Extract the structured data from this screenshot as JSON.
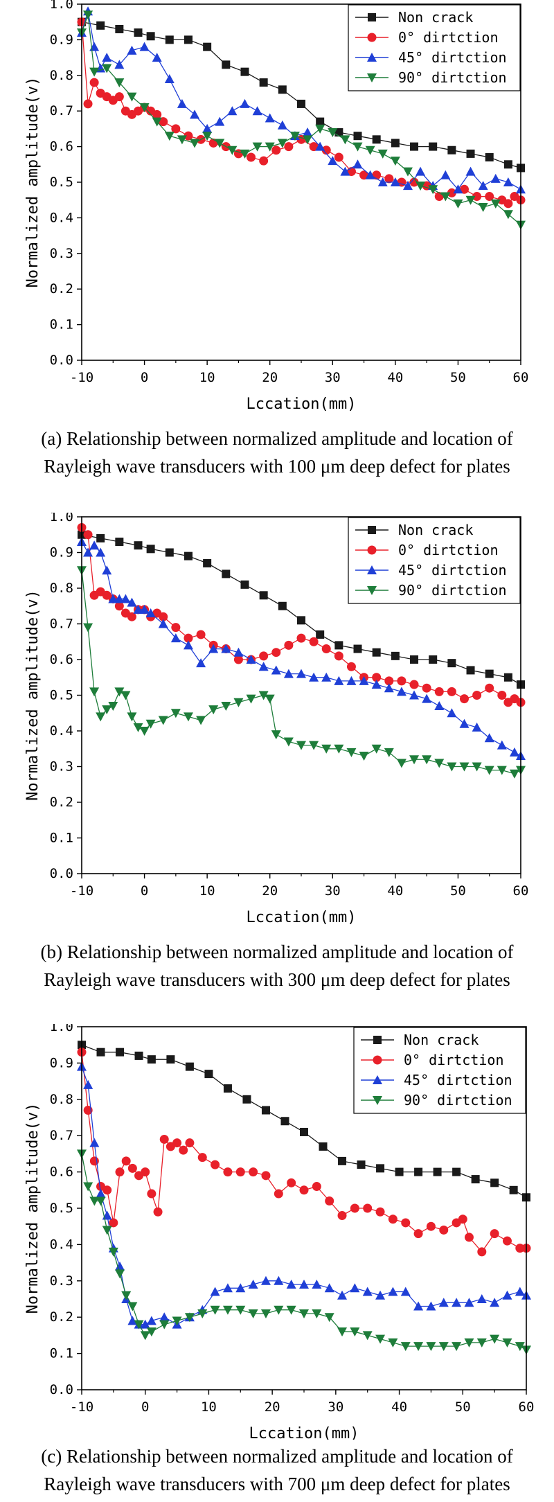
{
  "legend_labels": [
    "Non crack",
    "0° dirtction",
    "45° dirtction",
    "90° dirtction"
  ],
  "series_colors": [
    "#1a1a1a",
    "#e8202a",
    "#1f3fd6",
    "#1e7d3a"
  ],
  "series_markers": [
    "square",
    "circle",
    "triangle-up",
    "triangle-down"
  ],
  "chart_data": [
    {
      "type": "line",
      "xlabel": "Lccation(mm)",
      "ylabel": "Normalized amplitude(v)",
      "xlim": [
        -10,
        60
      ],
      "ylim": [
        0,
        1.0
      ],
      "xticks": [
        -10,
        0,
        10,
        20,
        30,
        40,
        50,
        60
      ],
      "yticks": [
        0.0,
        0.1,
        0.2,
        0.3,
        0.4,
        0.5,
        0.6,
        0.7,
        0.8,
        0.9,
        1.0
      ],
      "legend_position": "top-right",
      "grid": false,
      "caption_line1": "(a) Relationship between normalized amplitude and location of",
      "caption_line2": "Rayleigh wave transducers with 100 μm deep defect for plates",
      "series": [
        {
          "name": "Non crack",
          "x": [
            -10,
            -7,
            -4,
            -1,
            1,
            4,
            7,
            10,
            13,
            16,
            19,
            22,
            25,
            28,
            31,
            34,
            37,
            40,
            43,
            46,
            49,
            52,
            55,
            58,
            60
          ],
          "values": [
            0.95,
            0.94,
            0.93,
            0.92,
            0.91,
            0.9,
            0.9,
            0.88,
            0.83,
            0.81,
            0.78,
            0.76,
            0.72,
            0.67,
            0.64,
            0.63,
            0.62,
            0.61,
            0.6,
            0.6,
            0.59,
            0.58,
            0.57,
            0.55,
            0.54
          ]
        },
        {
          "name": "0° dirtction",
          "x": [
            -10,
            -9,
            -8,
            -7,
            -6,
            -5,
            -4,
            -3,
            -2,
            -1,
            0,
            1,
            2,
            3,
            5,
            7,
            9,
            11,
            13,
            15,
            17,
            19,
            21,
            23,
            25,
            27,
            29,
            31,
            33,
            35,
            37,
            39,
            41,
            43,
            45,
            47,
            49,
            51,
            53,
            55,
            57,
            58,
            59,
            60
          ],
          "values": [
            0.95,
            0.72,
            0.78,
            0.75,
            0.74,
            0.73,
            0.74,
            0.7,
            0.69,
            0.7,
            0.71,
            0.7,
            0.69,
            0.67,
            0.65,
            0.63,
            0.62,
            0.61,
            0.6,
            0.58,
            0.57,
            0.56,
            0.59,
            0.6,
            0.62,
            0.6,
            0.59,
            0.57,
            0.53,
            0.52,
            0.52,
            0.51,
            0.5,
            0.5,
            0.49,
            0.46,
            0.47,
            0.48,
            0.46,
            0.46,
            0.45,
            0.44,
            0.46,
            0.45
          ]
        },
        {
          "name": "45° dirtction",
          "x": [
            -10,
            -9,
            -8,
            -7,
            -6,
            -4,
            -2,
            0,
            2,
            4,
            6,
            8,
            10,
            12,
            14,
            16,
            18,
            20,
            22,
            24,
            26,
            28,
            30,
            32,
            34,
            36,
            38,
            40,
            42,
            44,
            46,
            48,
            50,
            52,
            54,
            56,
            58,
            60
          ],
          "values": [
            0.92,
            0.98,
            0.88,
            0.82,
            0.85,
            0.83,
            0.87,
            0.88,
            0.85,
            0.79,
            0.72,
            0.69,
            0.65,
            0.67,
            0.7,
            0.72,
            0.7,
            0.68,
            0.66,
            0.63,
            0.64,
            0.6,
            0.56,
            0.53,
            0.55,
            0.52,
            0.5,
            0.5,
            0.49,
            0.53,
            0.49,
            0.52,
            0.48,
            0.53,
            0.49,
            0.51,
            0.5,
            0.48
          ]
        },
        {
          "name": "90° dirtction",
          "x": [
            -10,
            -9,
            -8,
            -6,
            -4,
            -2,
            0,
            2,
            4,
            6,
            8,
            10,
            12,
            14,
            16,
            18,
            20,
            22,
            24,
            26,
            28,
            30,
            32,
            34,
            36,
            38,
            40,
            42,
            44,
            46,
            48,
            50,
            52,
            54,
            56,
            58,
            60
          ],
          "values": [
            0.92,
            0.97,
            0.81,
            0.82,
            0.78,
            0.74,
            0.71,
            0.67,
            0.63,
            0.62,
            0.61,
            0.63,
            0.61,
            0.59,
            0.58,
            0.6,
            0.6,
            0.61,
            0.63,
            0.62,
            0.65,
            0.64,
            0.62,
            0.6,
            0.59,
            0.58,
            0.56,
            0.53,
            0.49,
            0.48,
            0.46,
            0.44,
            0.45,
            0.43,
            0.44,
            0.41,
            0.38
          ]
        }
      ]
    },
    {
      "type": "line",
      "xlabel": "Lccation(mm)",
      "ylabel": "Normalized amplitude(v)",
      "xlim": [
        -10,
        60
      ],
      "ylim": [
        0,
        1.0
      ],
      "xticks": [
        -10,
        0,
        10,
        20,
        30,
        40,
        50,
        60
      ],
      "yticks": [
        0.0,
        0.1,
        0.2,
        0.3,
        0.4,
        0.5,
        0.6,
        0.7,
        0.8,
        0.9,
        1.0
      ],
      "legend_position": "top-right",
      "grid": false,
      "caption_line1": "(b) Relationship between normalized amplitude and location of",
      "caption_line2": "Rayleigh wave transducers with 300 μm deep defect for plates",
      "series": [
        {
          "name": "Non crack",
          "x": [
            -10,
            -7,
            -4,
            -1,
            1,
            4,
            7,
            10,
            13,
            16,
            19,
            22,
            25,
            28,
            31,
            34,
            37,
            40,
            43,
            46,
            49,
            52,
            55,
            58,
            60
          ],
          "values": [
            0.95,
            0.94,
            0.93,
            0.92,
            0.91,
            0.9,
            0.89,
            0.87,
            0.84,
            0.81,
            0.78,
            0.75,
            0.71,
            0.67,
            0.64,
            0.63,
            0.62,
            0.61,
            0.6,
            0.6,
            0.59,
            0.57,
            0.56,
            0.55,
            0.53
          ]
        },
        {
          "name": "0° dirtction",
          "x": [
            -10,
            -9,
            -8,
            -7,
            -6,
            -5,
            -4,
            -3,
            -2,
            -1,
            0,
            1,
            2,
            3,
            5,
            7,
            9,
            11,
            13,
            15,
            17,
            19,
            21,
            23,
            25,
            27,
            29,
            31,
            33,
            35,
            37,
            39,
            41,
            43,
            45,
            47,
            49,
            51,
            53,
            55,
            57,
            58,
            59,
            60
          ],
          "values": [
            0.97,
            0.95,
            0.78,
            0.79,
            0.78,
            0.77,
            0.75,
            0.73,
            0.72,
            0.74,
            0.74,
            0.72,
            0.73,
            0.72,
            0.69,
            0.66,
            0.67,
            0.64,
            0.63,
            0.6,
            0.6,
            0.61,
            0.62,
            0.64,
            0.66,
            0.65,
            0.63,
            0.61,
            0.58,
            0.55,
            0.55,
            0.54,
            0.54,
            0.53,
            0.52,
            0.51,
            0.51,
            0.49,
            0.5,
            0.52,
            0.5,
            0.48,
            0.49,
            0.48
          ]
        },
        {
          "name": "45° dirtction",
          "x": [
            -10,
            -9,
            -8,
            -7,
            -6,
            -5,
            -4,
            -3,
            -2,
            -1,
            0,
            1,
            3,
            5,
            7,
            9,
            11,
            13,
            15,
            17,
            19,
            21,
            23,
            25,
            27,
            29,
            31,
            33,
            35,
            37,
            39,
            41,
            43,
            45,
            47,
            49,
            51,
            53,
            55,
            57,
            59,
            60
          ],
          "values": [
            0.93,
            0.9,
            0.92,
            0.9,
            0.85,
            0.77,
            0.77,
            0.77,
            0.76,
            0.74,
            0.74,
            0.73,
            0.7,
            0.66,
            0.64,
            0.59,
            0.63,
            0.63,
            0.62,
            0.6,
            0.58,
            0.57,
            0.56,
            0.56,
            0.55,
            0.55,
            0.54,
            0.54,
            0.54,
            0.53,
            0.52,
            0.51,
            0.5,
            0.49,
            0.47,
            0.45,
            0.42,
            0.41,
            0.38,
            0.36,
            0.34,
            0.33
          ]
        },
        {
          "name": "90° dirtction",
          "x": [
            -10,
            -9,
            -8,
            -7,
            -6,
            -5,
            -4,
            -3,
            -2,
            -1,
            0,
            1,
            3,
            5,
            7,
            9,
            11,
            13,
            15,
            17,
            19,
            20,
            21,
            23,
            25,
            27,
            29,
            31,
            33,
            35,
            37,
            39,
            41,
            43,
            45,
            47,
            49,
            51,
            53,
            55,
            57,
            59,
            60
          ],
          "values": [
            0.85,
            0.69,
            0.51,
            0.44,
            0.46,
            0.47,
            0.51,
            0.5,
            0.44,
            0.41,
            0.4,
            0.42,
            0.43,
            0.45,
            0.44,
            0.43,
            0.46,
            0.47,
            0.48,
            0.49,
            0.5,
            0.49,
            0.39,
            0.37,
            0.36,
            0.36,
            0.35,
            0.35,
            0.34,
            0.33,
            0.35,
            0.34,
            0.31,
            0.32,
            0.32,
            0.31,
            0.3,
            0.3,
            0.3,
            0.29,
            0.29,
            0.28,
            0.29
          ]
        }
      ]
    },
    {
      "type": "line",
      "xlabel": "Lccation(mm)",
      "ylabel": "Normalized amplitude(v)",
      "xlim": [
        -10,
        60
      ],
      "ylim": [
        0,
        1.0
      ],
      "xticks": [
        -10,
        0,
        10,
        20,
        30,
        40,
        50,
        60
      ],
      "yticks": [
        0.0,
        0.1,
        0.2,
        0.3,
        0.4,
        0.5,
        0.6,
        0.7,
        0.8,
        0.9,
        1.0
      ],
      "legend_position": "top-right",
      "grid": false,
      "caption_line1": "(c) Relationship between normalized amplitude and location of",
      "caption_line2": "Rayleigh wave transducers with 700 μm deep defect for plates",
      "series": [
        {
          "name": "Non crack",
          "x": [
            -10,
            -7,
            -4,
            -1,
            1,
            4,
            7,
            10,
            13,
            16,
            19,
            22,
            25,
            28,
            31,
            34,
            37,
            40,
            43,
            46,
            49,
            52,
            55,
            58,
            60
          ],
          "values": [
            0.95,
            0.93,
            0.93,
            0.92,
            0.91,
            0.91,
            0.89,
            0.87,
            0.83,
            0.8,
            0.77,
            0.74,
            0.71,
            0.67,
            0.63,
            0.62,
            0.61,
            0.6,
            0.6,
            0.6,
            0.6,
            0.58,
            0.57,
            0.55,
            0.53
          ]
        },
        {
          "name": "0° dirtction",
          "x": [
            -10,
            -9,
            -8,
            -7,
            -6,
            -5,
            -4,
            -3,
            -2,
            -1,
            0,
            1,
            2,
            3,
            4,
            5,
            6,
            7,
            9,
            11,
            13,
            15,
            17,
            19,
            21,
            23,
            25,
            27,
            29,
            31,
            33,
            35,
            37,
            39,
            41,
            43,
            45,
            47,
            49,
            50,
            51,
            53,
            55,
            57,
            59,
            60
          ],
          "values": [
            0.93,
            0.77,
            0.63,
            0.56,
            0.55,
            0.46,
            0.6,
            0.63,
            0.61,
            0.59,
            0.6,
            0.54,
            0.49,
            0.69,
            0.67,
            0.68,
            0.66,
            0.68,
            0.64,
            0.62,
            0.6,
            0.6,
            0.6,
            0.59,
            0.54,
            0.57,
            0.55,
            0.56,
            0.52,
            0.48,
            0.5,
            0.5,
            0.49,
            0.47,
            0.46,
            0.43,
            0.45,
            0.44,
            0.46,
            0.47,
            0.42,
            0.38,
            0.43,
            0.41,
            0.39,
            0.39
          ]
        },
        {
          "name": "45° dirtction",
          "x": [
            -10,
            -9,
            -8,
            -7,
            -6,
            -5,
            -4,
            -3,
            -2,
            -1,
            0,
            1,
            3,
            5,
            7,
            9,
            11,
            13,
            15,
            17,
            19,
            21,
            23,
            25,
            27,
            29,
            31,
            33,
            35,
            37,
            39,
            41,
            43,
            45,
            47,
            49,
            51,
            53,
            55,
            57,
            59,
            60
          ],
          "values": [
            0.89,
            0.84,
            0.68,
            0.54,
            0.48,
            0.39,
            0.34,
            0.25,
            0.19,
            0.18,
            0.18,
            0.19,
            0.2,
            0.18,
            0.2,
            0.22,
            0.27,
            0.28,
            0.28,
            0.29,
            0.3,
            0.3,
            0.29,
            0.29,
            0.29,
            0.28,
            0.26,
            0.28,
            0.27,
            0.26,
            0.27,
            0.27,
            0.23,
            0.23,
            0.24,
            0.24,
            0.24,
            0.25,
            0.24,
            0.26,
            0.27,
            0.26
          ]
        },
        {
          "name": "90° dirtction",
          "x": [
            -10,
            -9,
            -8,
            -7,
            -6,
            -5,
            -4,
            -3,
            -2,
            -1,
            0,
            1,
            3,
            5,
            7,
            9,
            11,
            13,
            15,
            17,
            19,
            21,
            23,
            25,
            27,
            29,
            31,
            33,
            35,
            37,
            39,
            41,
            43,
            45,
            47,
            49,
            51,
            53,
            55,
            57,
            59,
            60
          ],
          "values": [
            0.65,
            0.56,
            0.52,
            0.52,
            0.44,
            0.38,
            0.32,
            0.26,
            0.23,
            0.18,
            0.15,
            0.16,
            0.18,
            0.19,
            0.2,
            0.21,
            0.22,
            0.22,
            0.22,
            0.21,
            0.21,
            0.22,
            0.22,
            0.21,
            0.21,
            0.2,
            0.16,
            0.16,
            0.15,
            0.14,
            0.13,
            0.12,
            0.12,
            0.12,
            0.12,
            0.12,
            0.13,
            0.13,
            0.14,
            0.13,
            0.12,
            0.11
          ]
        }
      ]
    }
  ]
}
